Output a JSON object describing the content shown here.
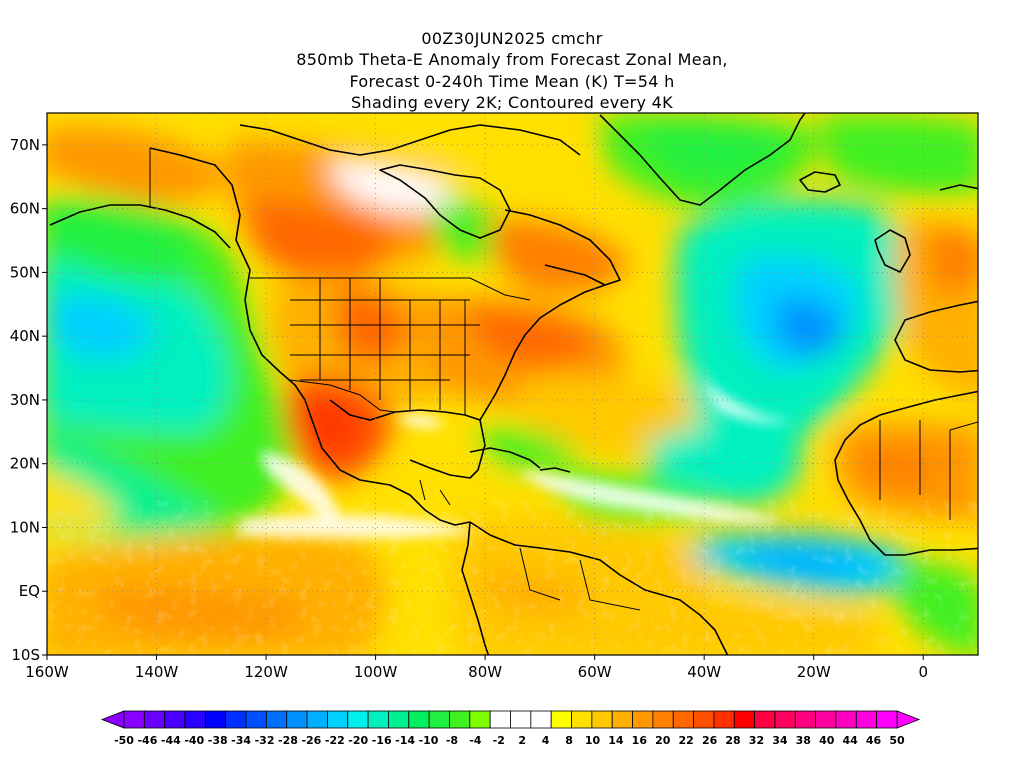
{
  "header": {
    "line1": "00Z30JUN2025 cmchr",
    "line2": "850mb Theta-E Anomaly from Forecast Zonal Mean,",
    "line3": "Forecast 0-240h Time Mean (K) T=54 h",
    "line4": "Shading every 2K; Contoured every 4K"
  },
  "chart_data": {
    "type": "heatmap",
    "title": "850mb Theta-E Anomaly from Forecast Zonal Mean, Forecast 0-240h Time Mean (K) T=54 h",
    "run": "00Z30JUN2025 cmchr",
    "units": "K",
    "shading_interval_K": 2,
    "contour_interval_K": 4,
    "x_axis": {
      "range": [
        -160,
        10
      ],
      "ticks": [
        {
          "value": -160,
          "label": "160W"
        },
        {
          "value": -140,
          "label": "140W"
        },
        {
          "value": -120,
          "label": "120W"
        },
        {
          "value": -100,
          "label": "100W"
        },
        {
          "value": -80,
          "label": "80W"
        },
        {
          "value": -60,
          "label": "60W"
        },
        {
          "value": -40,
          "label": "40W"
        },
        {
          "value": -20,
          "label": "20W"
        },
        {
          "value": 0,
          "label": "0"
        }
      ]
    },
    "y_axis": {
      "range": [
        -10,
        75
      ],
      "ticks": [
        {
          "value": 70,
          "label": "70N"
        },
        {
          "value": 60,
          "label": "60N"
        },
        {
          "value": 50,
          "label": "50N"
        },
        {
          "value": 40,
          "label": "40N"
        },
        {
          "value": 30,
          "label": "30N"
        },
        {
          "value": 20,
          "label": "20N"
        },
        {
          "value": 10,
          "label": "10N"
        },
        {
          "value": 0,
          "label": "EQ"
        },
        {
          "value": -10,
          "label": "10S"
        }
      ]
    },
    "colorbar": {
      "below_color": "#8a00ff",
      "above_color": "#ff00ff",
      "colors": [
        "#8a00ff",
        "#6a00ff",
        "#4a00ff",
        "#2a00ff",
        "#0000ff",
        "#0030ff",
        "#0050ff",
        "#0070ff",
        "#0090ff",
        "#00b0ff",
        "#00d0ff",
        "#00f0f0",
        "#00f0c0",
        "#00f090",
        "#00f060",
        "#20f040",
        "#40f020",
        "#80ff00",
        "#ffffff",
        "#ffffff",
        "#ffffff",
        "#ffff00",
        "#ffe000",
        "#ffc800",
        "#ffb000",
        "#ff9800",
        "#ff8000",
        "#ff6800",
        "#ff5000",
        "#ff3000",
        "#ff0000",
        "#ff0040",
        "#ff0060",
        "#ff0080",
        "#ff00a0",
        "#ff00c0",
        "#ff00e0",
        "#ff00ff"
      ],
      "labels": [
        "-50",
        "-46",
        "-44",
        "-40",
        "-38",
        "-34",
        "-32",
        "-28",
        "-26",
        "-22",
        "-20",
        "-16",
        "-14",
        "-10",
        "-8",
        "-4",
        "-2",
        "2",
        "4",
        "8",
        "10",
        "14",
        "16",
        "20",
        "22",
        "26",
        "28",
        "32",
        "34",
        "38",
        "40",
        "44",
        "46",
        "50"
      ]
    },
    "regions": [
      {
        "name": "north-pacific-cool",
        "anomaly": -16
      },
      {
        "name": "southwest-us-mexico-warm",
        "anomaly": 26
      },
      {
        "name": "central-us-warm",
        "anomaly": 20
      },
      {
        "name": "western-atlantic-warm",
        "anomaly": 16
      },
      {
        "name": "north-atlantic-cool",
        "anomaly": -16
      },
      {
        "name": "greenland-cool",
        "anomaly": -10
      },
      {
        "name": "west-africa-warm",
        "anomaly": 14
      },
      {
        "name": "eastern-tropical-atlantic-cool",
        "anomaly": -20
      },
      {
        "name": "south-america-warm",
        "anomaly": 10
      },
      {
        "name": "tropical-pacific-mixed",
        "anomaly": 8
      }
    ]
  }
}
